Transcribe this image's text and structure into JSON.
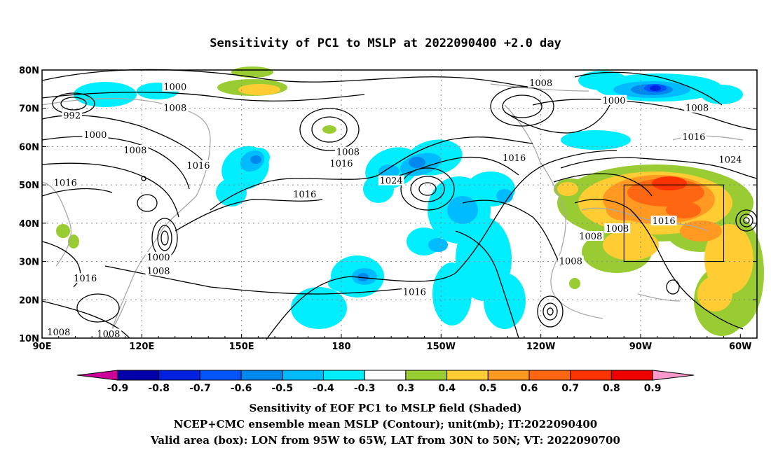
{
  "chart_data": {
    "type": "heatmap",
    "title": "Sensitivity of PC1 to MSLP at 2022090400 +2.0 day",
    "x_ticks": [
      "90E",
      "120E",
      "150E",
      "180",
      "150W",
      "120W",
      "90W",
      "60W"
    ],
    "y_ticks": [
      "10N",
      "20N",
      "30N",
      "40N",
      "50N",
      "60N",
      "70N",
      "80N"
    ],
    "x_range_lon": [
      90,
      305
    ],
    "y_range_lat": [
      10,
      80
    ],
    "grid": true,
    "colorbar": {
      "levels": [
        "-0.9",
        "-0.8",
        "-0.7",
        "-0.6",
        "-0.5",
        "-0.4",
        "-0.3",
        "0.3",
        "0.4",
        "0.5",
        "0.6",
        "0.7",
        "0.8",
        "0.9"
      ],
      "colors": [
        "#cc0099",
        "#0000aa",
        "#0022e0",
        "#0055ff",
        "#0088ee",
        "#00bbff",
        "#00eeff",
        "#ffffff",
        "#99cc33",
        "#ffcc33",
        "#ff9922",
        "#ff6611",
        "#ff3300",
        "#ee0000",
        "#ff99cc"
      ]
    },
    "contour_labels": [
      {
        "text": "1000",
        "lon": 130,
        "lat": 75.5
      },
      {
        "text": "1008",
        "lon": 130,
        "lat": 70
      },
      {
        "text": "992",
        "lon": 99,
        "lat": 68
      },
      {
        "text": "1000",
        "lon": 106,
        "lat": 63
      },
      {
        "text": "1008",
        "lon": 118,
        "lat": 59
      },
      {
        "text": "1016",
        "lon": 137,
        "lat": 55
      },
      {
        "text": "1016",
        "lon": 97,
        "lat": 50.5
      },
      {
        "text": "1008",
        "lon": 182,
        "lat": 58.5
      },
      {
        "text": "1016",
        "lon": 180,
        "lat": 55.5
      },
      {
        "text": "1008",
        "lon": 240,
        "lat": 76.5
      },
      {
        "text": "1000",
        "lon": 262,
        "lat": 72
      },
      {
        "text": "1008",
        "lon": 287,
        "lat": 70
      },
      {
        "text": "1016",
        "lon": 286,
        "lat": 62.5
      },
      {
        "text": "1024",
        "lon": 297,
        "lat": 56.5
      },
      {
        "text": "1016",
        "lon": 232,
        "lat": 57
      },
      {
        "text": "1024",
        "lon": 195,
        "lat": 51
      },
      {
        "text": "1016",
        "lon": 169,
        "lat": 47.5
      },
      {
        "text": "1016",
        "lon": 277,
        "lat": 40.5
      },
      {
        "text": "1008",
        "lon": 263,
        "lat": 38.5
      },
      {
        "text": "1008",
        "lon": 255,
        "lat": 36.5
      },
      {
        "text": "1008",
        "lon": 249,
        "lat": 30
      },
      {
        "text": "1000",
        "lon": 125,
        "lat": 31
      },
      {
        "text": "1008",
        "lon": 125,
        "lat": 27.5
      },
      {
        "text": "1016",
        "lon": 103,
        "lat": 25.5
      },
      {
        "text": "1016",
        "lon": 202,
        "lat": 22
      },
      {
        "text": "1008",
        "lon": 95,
        "lat": 11.5
      },
      {
        "text": "1008",
        "lon": 110,
        "lat": 11
      }
    ],
    "valid_box": {
      "lon_from": "95W",
      "lon_to": "65W",
      "lat_from": "30N",
      "lat_to": "50N"
    },
    "shaded_field": "Sensitivity of EOF PC1 to MSLP field (Shaded)",
    "contour_field": "NCEP+CMC ensemble mean MSLP (Contour); unit(mb); IT:2022090400",
    "valid_text": "Valid area (box): LON from 95W to 65W, LAT from 30N to 50N; VT: 2022090700"
  }
}
